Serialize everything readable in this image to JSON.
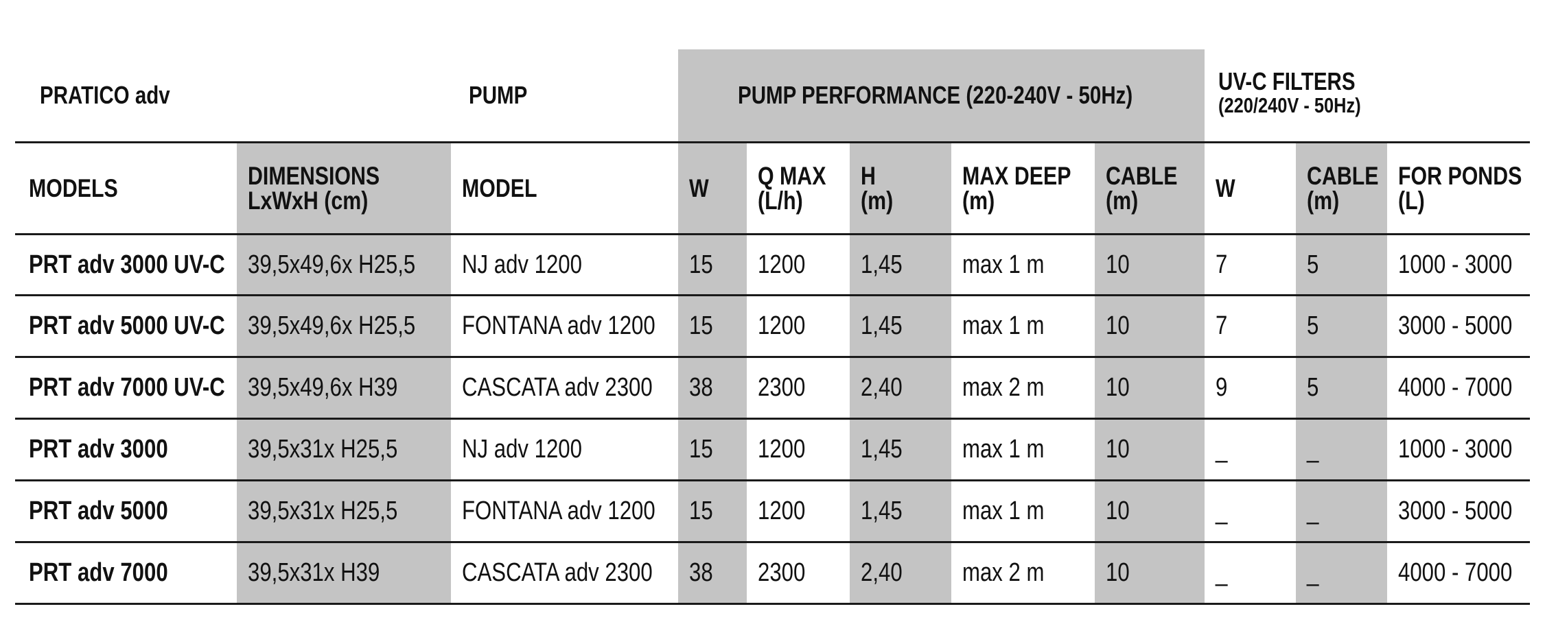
{
  "groups": {
    "brand": "PRATICO adv",
    "pump": "PUMP",
    "performance": "PUMP PERFORMANCE (220-240V - 50Hz)",
    "uvc": "UV-C FILTERS",
    "uvc_sub": "(220/240V - 50Hz)"
  },
  "columns": [
    {
      "line1": "MODELS",
      "line2": ""
    },
    {
      "line1": "DIMENSIONS",
      "line2": "LxWxH (cm)"
    },
    {
      "line1": "MODEL",
      "line2": ""
    },
    {
      "line1": "W",
      "line2": ""
    },
    {
      "line1": "Q MAX",
      "line2": "(L/h)"
    },
    {
      "line1": "H",
      "line2": "(m)"
    },
    {
      "line1": "MAX DEEP",
      "line2": "(m)"
    },
    {
      "line1": "CABLE",
      "line2": "(m)"
    },
    {
      "line1": "W",
      "line2": ""
    },
    {
      "line1": "CABLE",
      "line2": "(m)"
    },
    {
      "line1": "FOR PONDS",
      "line2": "(L)"
    }
  ],
  "rows": [
    [
      "PRT adv 3000 UV-C",
      "39,5x49,6x H25,5",
      "NJ adv 1200",
      "15",
      "1200",
      "1,45",
      "max 1 m",
      "10",
      "7",
      "5",
      "1000 - 3000"
    ],
    [
      "PRT adv 5000 UV-C",
      "39,5x49,6x H25,5",
      "FONTANA adv 1200",
      "15",
      "1200",
      "1,45",
      "max 1 m",
      "10",
      "7",
      "5",
      "3000 - 5000"
    ],
    [
      "PRT adv 7000 UV-C",
      "39,5x49,6x H39",
      "CASCATA adv 2300",
      "38",
      "2300",
      "2,40",
      "max 2 m",
      "10",
      "9",
      "5",
      "4000 - 7000"
    ],
    [
      "PRT adv 3000",
      "39,5x31x H25,5",
      "NJ adv 1200",
      "15",
      "1200",
      "1,45",
      "max 1 m",
      "10",
      "_",
      "_",
      "1000 - 3000"
    ],
    [
      "PRT adv 5000",
      "39,5x31x H25,5",
      "FONTANA adv 1200",
      "15",
      "1200",
      "1,45",
      "max 1 m",
      "10",
      "_",
      "_",
      "3000 - 5000"
    ],
    [
      "PRT adv 7000",
      "39,5x31x H39",
      "CASCATA adv 2300",
      "38",
      "2300",
      "2,40",
      "max 2 m",
      "10",
      "_",
      "_",
      "4000 - 7000"
    ]
  ]
}
